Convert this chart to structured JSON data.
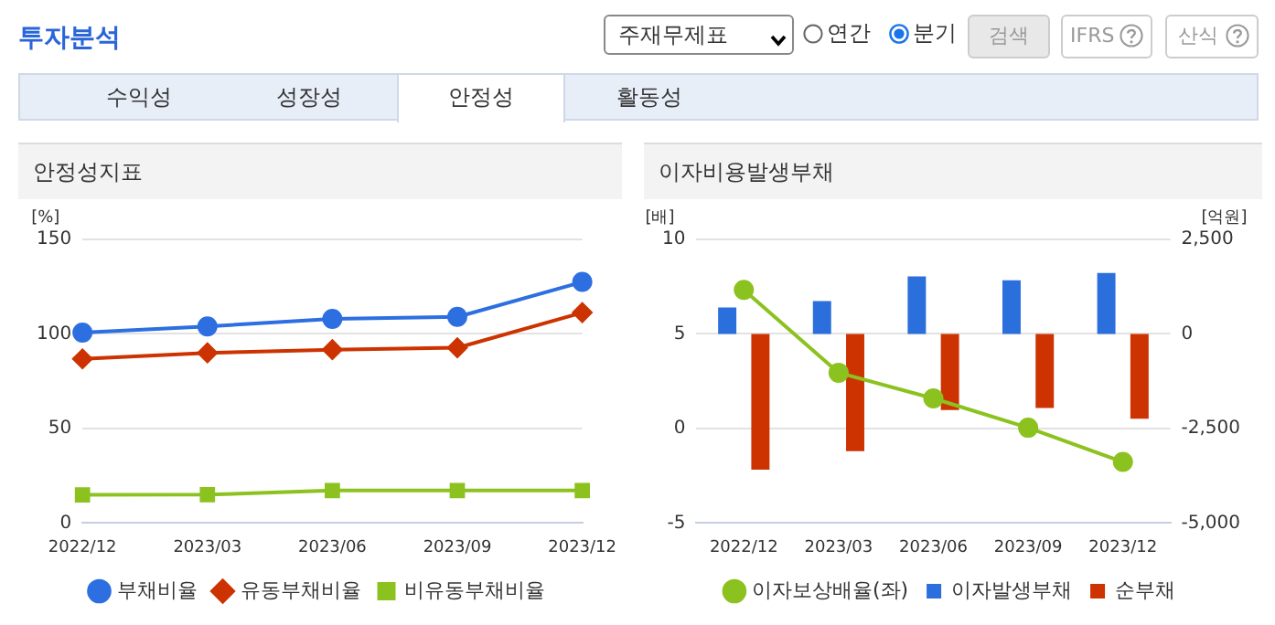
{
  "chart_data": [
    {
      "type": "line",
      "title": "안정성지표",
      "ylabel": "[%]",
      "annotations": [
        "투자분석",
        "주재무제표",
        "연간",
        "분기",
        "검색",
        "IFRS",
        "산식",
        "수익성",
        "성장성",
        "안정성",
        "활동성"
      ],
      "categories": [
        "2022/12",
        "2023/03",
        "2023/06",
        "2023/09",
        "2023/12"
      ],
      "ylim": [
        0,
        150
      ],
      "yticks": [
        0,
        50,
        100,
        150
      ],
      "grid": "y",
      "legend": "bottom",
      "series": [
        {
          "name": "부채비율",
          "color": "#2d6fe0",
          "marker": "circle",
          "values": [
            100.7,
            104,
            108,
            109,
            127.5
          ]
        },
        {
          "name": "유동부채비율",
          "color": "#cc3300",
          "marker": "diamond",
          "values": [
            86.8,
            90,
            91.7,
            92.7,
            111.3
          ]
        },
        {
          "name": "비유동부채비율",
          "color": "#8cc21f",
          "marker": "square",
          "values": [
            14.9,
            15,
            17.2,
            17.2,
            17.2
          ]
        }
      ]
    },
    {
      "type": "bar",
      "title": "이자비용발생부채",
      "ylabel": "[배]",
      "y2label": "[억원]",
      "categories": [
        "2022/12",
        "2023/03",
        "2023/06",
        "2023/09",
        "2023/12"
      ],
      "ylim": [
        -5,
        10
      ],
      "yticks": [
        -5,
        0,
        5,
        10
      ],
      "y2lim": [
        -5000,
        2500
      ],
      "y2ticks": [
        {
          "value": -5000,
          "label": "-5,000"
        },
        {
          "value": -2500,
          "label": "-2,500"
        },
        0,
        {
          "value": 2500,
          "label": "2,500"
        }
      ],
      "grid": "y",
      "legend": "bottom",
      "series": [
        {
          "name": "이자발생부채",
          "color": "#2b6fdc",
          "axis": "y2",
          "values": [
            700,
            870,
            1520,
            1420,
            1615
          ]
        },
        {
          "name": "순부채",
          "color": "#cc3300",
          "axis": "y2",
          "values": [
            -3590,
            -3100,
            -2010,
            -1960,
            -2240
          ]
        },
        {
          "name": "이자보상배율(좌)",
          "type": "line",
          "color": "#8cc21f",
          "marker": "circle",
          "values": [
            7.33,
            2.95,
            1.59,
            0.04,
            -1.77
          ]
        }
      ]
    }
  ]
}
